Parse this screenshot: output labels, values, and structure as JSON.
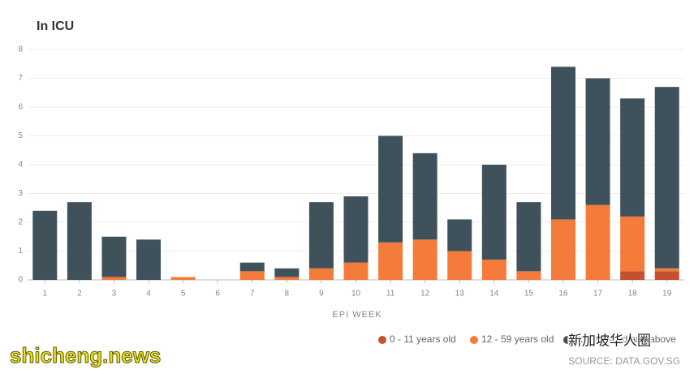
{
  "chart_data": {
    "type": "stacked-bar",
    "title": "In ICU",
    "x_label": "EPI WEEK",
    "source": "SOURCE: DATA.GOV.SG",
    "categories": [
      "1",
      "2",
      "3",
      "4",
      "5",
      "6",
      "7",
      "8",
      "9",
      "10",
      "11",
      "12",
      "13",
      "14",
      "15",
      "16",
      "17",
      "18",
      "19"
    ],
    "series": [
      {
        "name": "0 - 11 years old",
        "color": "#c4502f",
        "values": [
          0,
          0,
          0,
          0,
          0,
          0,
          0,
          0,
          0,
          0,
          0,
          0,
          0,
          0,
          0,
          0,
          0,
          0.3,
          0.3
        ]
      },
      {
        "name": "12 - 59 years old",
        "color": "#f47b3a",
        "values": [
          0,
          0,
          0.1,
          0,
          0.1,
          0,
          0.3,
          0.1,
          0.4,
          0.6,
          1.3,
          1.4,
          1.0,
          0.7,
          0.3,
          2.1,
          2.6,
          1.9,
          0.1
        ]
      },
      {
        "name": "60 years old and above",
        "color": "#3f525c",
        "values": [
          2.4,
          2.7,
          1.4,
          1.4,
          0,
          0,
          0.3,
          0.3,
          2.3,
          2.3,
          3.7,
          3.0,
          1.1,
          3.3,
          2.4,
          5.3,
          4.4,
          4.1,
          6.3
        ]
      }
    ],
    "ylim": [
      0,
      8
    ],
    "yticks": [
      0,
      1,
      2,
      3,
      4,
      5,
      6,
      7,
      8
    ],
    "grid": true,
    "watermarks": [
      "shicheng.news",
      "新加坡华人圈"
    ]
  }
}
